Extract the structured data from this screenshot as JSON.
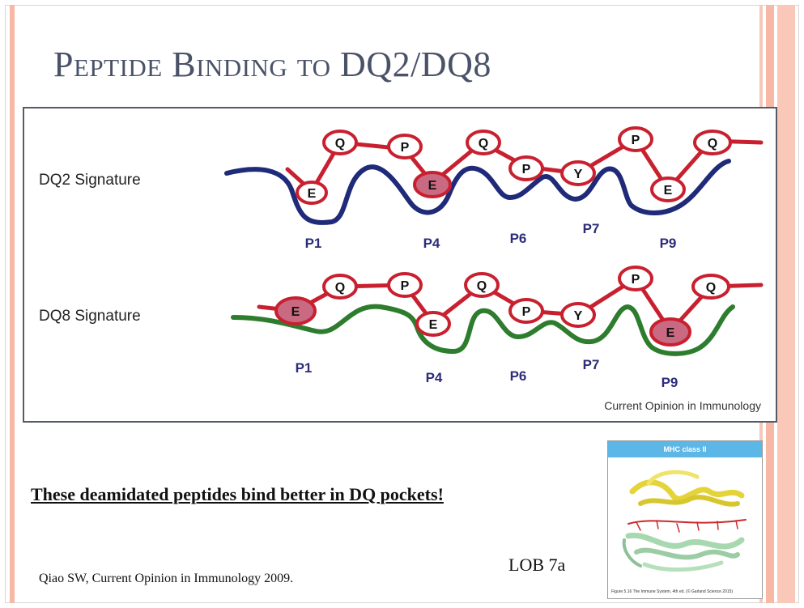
{
  "slide": {
    "title": "Peptide Binding to DQ2/DQ8",
    "statement": "These deamidated peptides bind better in DQ pockets!",
    "citation": "Qiao SW, Current Opinion in Immunology 2009.",
    "lob_label": "LOB 7a"
  },
  "figure": {
    "dq2_label": "DQ2 Signature",
    "dq8_label": "DQ8 Signature",
    "credit": "Current Opinion in Immunology",
    "dq2_groove_color": "#1f2a78",
    "dq8_groove_color": "#2e7d2e",
    "peptide_color": "#c8202f",
    "filled_residue_color": "#c96a82",
    "dq2_residues": [
      "E",
      "Q",
      "P",
      "E",
      "Q",
      "P",
      "Y",
      "P",
      "E",
      "Q"
    ],
    "dq8_residues": [
      "E",
      "Q",
      "P",
      "E",
      "Q",
      "P",
      "Y",
      "P",
      "E",
      "Q"
    ],
    "dq2_pockets": [
      "P1",
      "P4",
      "P6",
      "P7",
      "P9"
    ],
    "dq8_pockets": [
      "P1",
      "P4",
      "P6",
      "P7",
      "P9"
    ]
  },
  "structure_image": {
    "header": "MHC class II",
    "caption": "Figure 5.16 The Immune System, 4th ed. (© Garland Science 2015)"
  }
}
